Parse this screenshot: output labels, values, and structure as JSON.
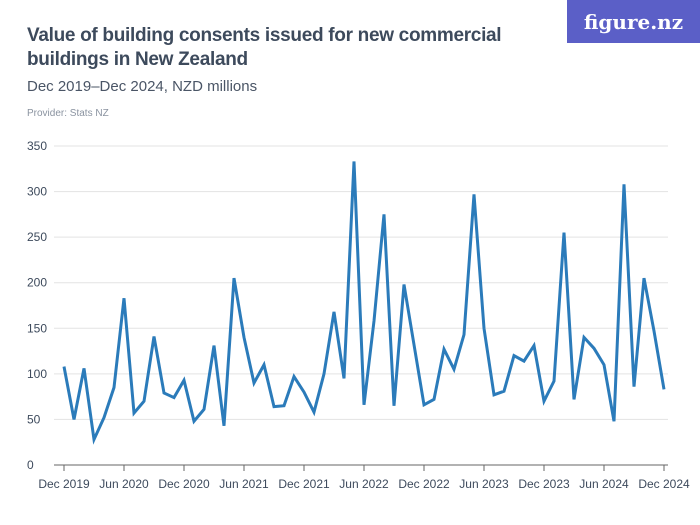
{
  "header": {
    "title": "Value of building consents issued for new commercial buildings in New Zealand",
    "subtitle": "Dec 2019–Dec 2024, NZD millions",
    "provider": "Provider: Stats NZ",
    "logo": "figure.nz"
  },
  "colors": {
    "line": "#2b7bba",
    "grid": "#e3e3e3",
    "logo_bg": "#5b5fc7"
  },
  "chart_data": {
    "type": "line",
    "title": "Value of building consents issued for new commercial buildings in New Zealand",
    "subtitle": "Dec 2019–Dec 2024, NZD millions",
    "ylim": [
      0,
      350
    ],
    "yticks": [
      0,
      50,
      100,
      150,
      200,
      250,
      300,
      350
    ],
    "xticks": [
      "Dec 2019",
      "Jun 2020",
      "Dec 2020",
      "Jun 2021",
      "Dec 2021",
      "Jun 2022",
      "Dec 2022",
      "Jun 2023",
      "Dec 2023",
      "Jun 2024",
      "Dec 2024"
    ],
    "x_start": "Dec 2019",
    "x_end": "Dec 2024",
    "frequency": "monthly",
    "grid": true,
    "values": [
      108,
      50,
      106,
      28,
      52,
      85,
      183,
      57,
      70,
      141,
      79,
      74,
      93,
      48,
      61,
      131,
      43,
      205,
      140,
      90,
      110,
      64,
      65,
      97,
      80,
      58,
      100,
      168,
      95,
      333,
      66,
      158,
      275,
      65,
      198,
      132,
      66,
      72,
      127,
      105,
      143,
      297,
      150,
      77,
      81,
      120,
      114,
      131,
      70,
      92,
      255,
      72,
      140,
      128,
      110,
      48,
      308,
      86,
      205,
      147,
      83
    ]
  }
}
